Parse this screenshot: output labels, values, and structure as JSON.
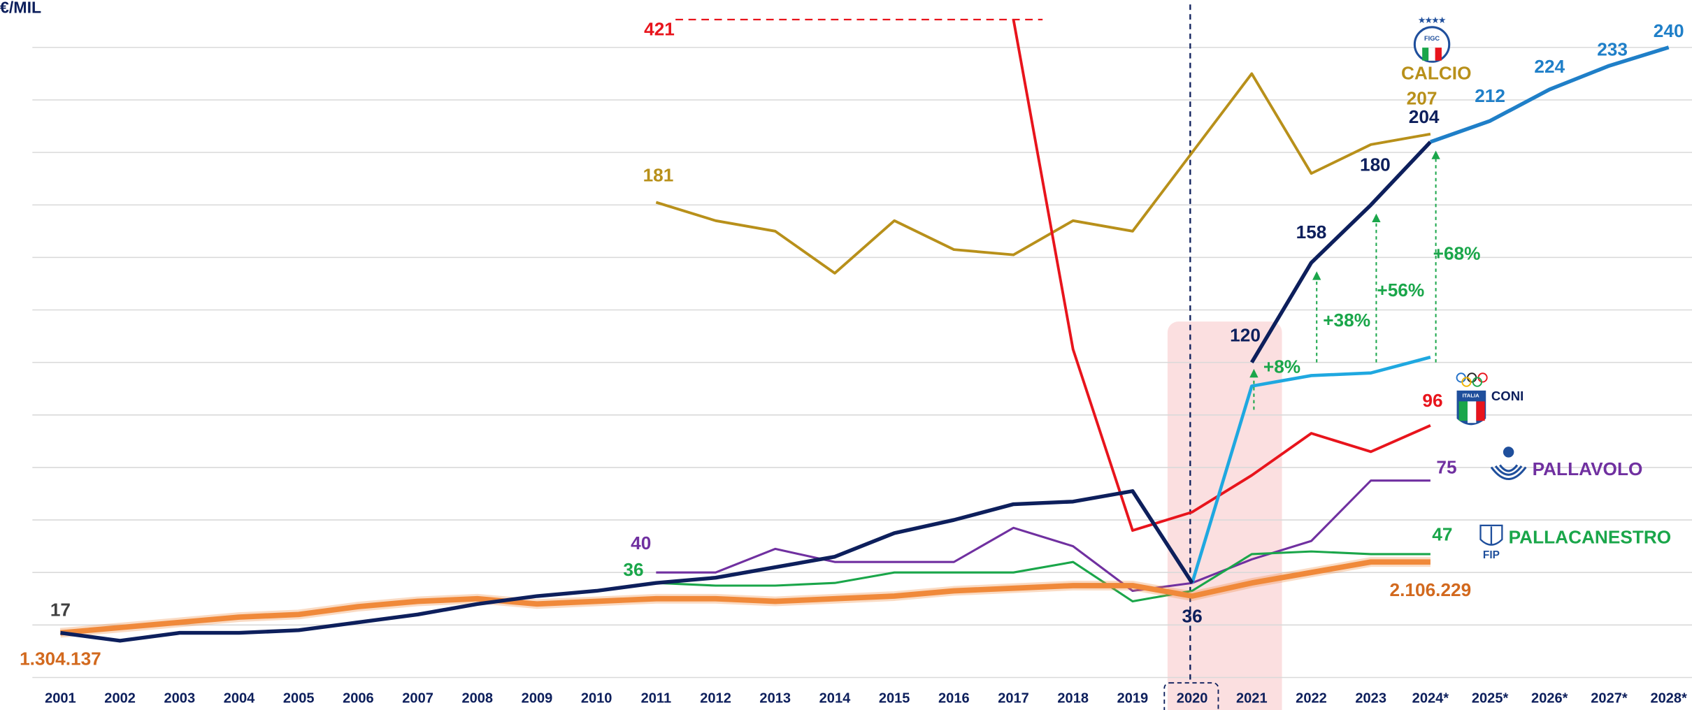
{
  "chart_data": {
    "type": "line",
    "y_label": "€/MIL",
    "categories": [
      "2001",
      "2002",
      "2003",
      "2004",
      "2005",
      "2006",
      "2007",
      "2008",
      "2009",
      "2010",
      "2011",
      "2012",
      "2013",
      "2014",
      "2015",
      "2016",
      "2017",
      "2018",
      "2019",
      "2020",
      "2021",
      "2022",
      "2023",
      "2024*",
      "2025*",
      "2026*",
      "2027*",
      "2028*"
    ],
    "ylim": [
      0,
      258
    ],
    "yticks": [
      0,
      20,
      40,
      60,
      80,
      100,
      120,
      140,
      160,
      180,
      200,
      220,
      240
    ],
    "grid": true,
    "series": [
      {
        "color": "#0d1f5c",
        "values": [
          17,
          14,
          17,
          17,
          18,
          21,
          24,
          28,
          31,
          33,
          36,
          38,
          42,
          46,
          55,
          60,
          66,
          67,
          71,
          36,
          null,
          null,
          null,
          null,
          null,
          null,
          null,
          null
        ]
      },
      {
        "color": "#0d1f5c",
        "values": [
          null,
          null,
          null,
          null,
          null,
          null,
          null,
          null,
          null,
          null,
          null,
          null,
          null,
          null,
          null,
          null,
          null,
          null,
          null,
          null,
          120,
          158,
          180,
          204,
          null,
          null,
          null,
          null
        ]
      },
      {
        "color": "#1f7fc8",
        "values": [
          null,
          null,
          null,
          null,
          null,
          null,
          null,
          null,
          null,
          null,
          null,
          null,
          null,
          null,
          null,
          null,
          null,
          null,
          null,
          null,
          null,
          null,
          null,
          204,
          212,
          224,
          233,
          240
        ]
      },
      {
        "color": "#1fa8e0",
        "values": [
          null,
          null,
          null,
          null,
          null,
          null,
          null,
          null,
          null,
          null,
          null,
          null,
          null,
          null,
          null,
          null,
          null,
          null,
          null,
          36,
          111,
          115,
          116,
          122,
          null,
          null,
          null,
          null
        ]
      },
      {
        "name": "CALCIO",
        "color": "#b8901a",
        "values": [
          null,
          null,
          null,
          null,
          null,
          null,
          null,
          null,
          null,
          null,
          181,
          174,
          170,
          154,
          174,
          163,
          161,
          174,
          170,
          200,
          230,
          192,
          203,
          207,
          null,
          null,
          null,
          null
        ]
      },
      {
        "name": "CONI",
        "color": "#e8141c",
        "values": [
          null,
          null,
          null,
          null,
          null,
          null,
          null,
          null,
          null,
          null,
          null,
          null,
          null,
          null,
          null,
          null,
          421,
          125,
          56,
          63,
          77,
          93,
          86,
          96,
          null,
          null,
          null,
          null
        ]
      },
      {
        "name": "PALLAVOLO",
        "color": "#7030a0",
        "values": [
          null,
          null,
          null,
          null,
          null,
          null,
          null,
          null,
          null,
          null,
          40,
          40,
          49,
          44,
          44,
          44,
          57,
          50,
          33,
          36,
          45,
          52,
          75,
          75,
          null,
          null,
          null,
          null
        ]
      },
      {
        "name": "PALLACANESTRO",
        "color": "#1aa64a",
        "values": [
          null,
          null,
          null,
          null,
          null,
          null,
          null,
          null,
          null,
          null,
          36,
          35,
          35,
          36,
          40,
          40,
          40,
          44,
          29,
          33,
          47,
          48,
          47,
          47,
          null,
          null,
          null,
          null
        ]
      },
      {
        "color": "#f0893a",
        "values": [
          17,
          19,
          21,
          23,
          24,
          27,
          29,
          30,
          28,
          29,
          30,
          30,
          29,
          30,
          31,
          33,
          34,
          35,
          35,
          31,
          36,
          40,
          44,
          44,
          null,
          null,
          null,
          null
        ]
      }
    ],
    "annotations": [
      {
        "text": "1.304.137"
      },
      {
        "text": "2.106.229"
      },
      {
        "text": "+8%"
      },
      {
        "text": "+38%"
      },
      {
        "text": "+56%"
      },
      {
        "text": "+68%"
      }
    ],
    "logos": {
      "figc": "FIGC",
      "italia": "ITALIA",
      "fip": "FIP"
    }
  }
}
